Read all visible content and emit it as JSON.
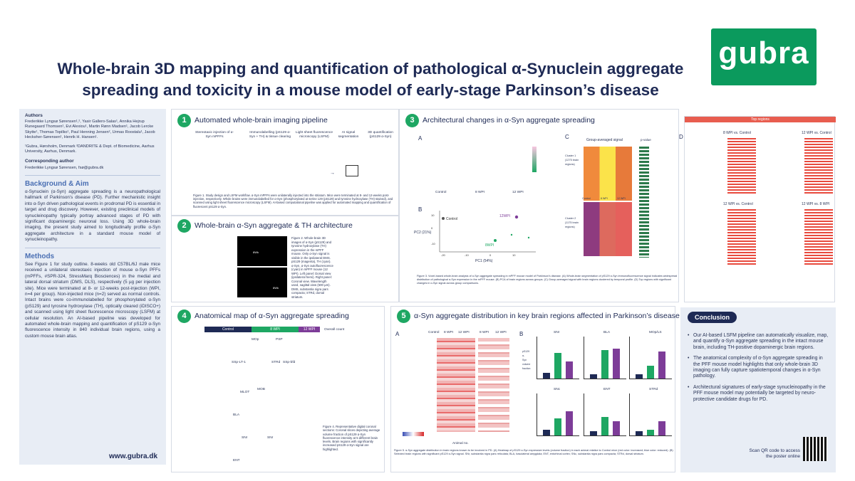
{
  "title": {
    "line1": "Whole-brain 3D mapping and quantification of pathological α-Synuclein aggregate",
    "line2": "spreading and toxicity in a mouse model of early-stage Parkinson’s disease"
  },
  "logo": "gubra",
  "sidebar": {
    "authors_head": "Authors",
    "authors": "Frederikke Lyngsø Sørensen¹,², Yasir Gallero-Salas¹, Annika Hejrup Runegaard Thomsen¹, Evi Alexiou¹, Martin Rønn Madsen¹, Jacob Lercke Skytte¹, Thomas Topilko¹, Paul Henning Jensen², Urmas Roostalu¹, Jacob Hecksher-Sørensen¹, Henrik H. Hansen¹.",
    "affil": "¹Gubra, Hørsholm, Denmark ²DANDRITE & Dept. of Biomedicine, Aarhus University, Aarhus, Denmark.",
    "corr_head": "Corresponding author",
    "corr": "Frederikke Lyngsø Sørensen, fsø@gubra.dk",
    "bg_head": "Background & Aim",
    "bg": "α-Synuclein (α-Syn) aggregate spreading is a neuropathological hallmark of Parkinson’s disease (PD). Further mechanistic insight into α-Syn driven pathological events in prodromal PD is essential in target and drug discovery. However, existing preclinical models of synucleinopathy typically portray advanced stages of PD with significant dopaminergic neuronal loss. Using 3D whole-brain imaging, the present study aimed to longitudinally profile α-Syn aggregate architecture in a standard mouse model of synucleinopathy.",
    "methods_head": "Methods",
    "methods": "See Figure 1 for study outline. 8-weeks old C57BL/6J male mice received a unilateral stereotaxic injection of mouse α-Syn PFFs (mPFFs, #SPR-324, StressMarq Biosciences) in the medial and lateral dorsal striatum (DMS, DLS), respectively (5 µg per injection site). Mice were terminated at 8- or 12-weeks post-injection (WPI, n=4 per group). Non-injected mice (n=2) served as normal controls. Intact brains were co-immunolabelled for phosphorylated α-Syn (pS129) and tyrosine hydroxylase (TH), optically cleared (iDISCO+) and scanned using light sheet fluorescence microscopy (LSFM) at cellular resolution. An AI-based pipeline was developed for automated whole-brain mapping and quantification of pS129 α-Syn fluorescence intensity in 840 individual brain regions, using a custom mouse brain atlas.",
    "www": "www.gubra.dk"
  },
  "panel1": {
    "num": "1",
    "title": "Automated whole-brain imaging pipeline",
    "steps": [
      "Stereotaxic injection of α-Syn mPFFs",
      "Immunolabelling (pS129 α-Syn + TH) & tissue clearing",
      "Light sheet fluorescence microscopy (LSFM)",
      "AI signal segmentation",
      "3D quantification (pS129 α-Syn)"
    ],
    "caption": "Figure 1. Study design and LSFM workflow. α-Syn mPFFs were unilaterally injected into the striatum. Mice were terminated at 8- and 12-weeks post-injection, respectively. Whole brains were immunolabelled for α-Syn (phosphorylated at serine 129 (pS129) and tyrosine hydroxylase (TH) stained), and scanned using light sheet fluorescence microscopy (LSFM). AI-based computational pipeline was applied for automated mapping and quantification of fluorescent pS129 α-Syn."
  },
  "panel2": {
    "num": "2",
    "title": "Whole-brain α-Syn aggregate & TH architecture",
    "img_labels": [
      "8Wk",
      "8Wk"
    ],
    "caption": "Figure 2. Whole-brain 3D images of α-Syn (pS129) and tyrosine hydroxylase (TH) expression in the mPFF mouse. Only α-Syn signal is visible in the ipsilateral DMS. pS129 (magenta), TH (cyan). α-Syn, α-Syn autofluorescence (cyan) in mPFF mouse (12 WPI). Left panel: Dorsal view (ipsilateral hemi). Right panel: Coronal view. Wavelength used, sagittal view (500 µm). DMS, substantia nigra pars compacta; STRd, dorsal striatum."
  },
  "panel3": {
    "num": "3",
    "title": "Architectural changes in α-Syn aggregate spreading",
    "labels": {
      "a": "A",
      "b": "B",
      "c": "C",
      "d": "D"
    },
    "pca_groups": [
      "Control",
      "8 WPI",
      "12 WPI"
    ],
    "pca_xlabel": "PC1 (54%)",
    "pca_ylabel": "PC2 (21%)",
    "pca_point_labels": [
      "Control",
      "12WPI",
      "8WPI"
    ],
    "pca_ticks_x": [
      "-20",
      "-10",
      "0",
      "10"
    ],
    "pca_ticks_y": [
      "10",
      "0",
      "-10"
    ],
    "heat_title": "Group-averaged signal",
    "heat_cols": [
      "Control",
      "8 WPI",
      "12 WPI"
    ],
    "cluster1": "Cluster 1 (1275 brain regions)",
    "cluster2": "Cluster 2 (1175 brain regions)",
    "pval_title": "p-value",
    "top_regions": "Top regions",
    "d_heads": [
      "8 WPI vs. Control",
      "12 WPI vs. Control",
      "12 WPI vs. Control",
      "12 WPI vs. 8 WPI"
    ],
    "caption": "Figure 3. Voxel-based whole-brain analysis of α-Syn aggregate spreading in mPFF mouse model of Parkinson’s disease. (A) Whole-brain segmentation of pS129 α-Syn immunofluorescence signal indicates widespread distribution of pathological α-Syn expression in the mPFF mouse. (B) PCA of brain regions across groups. (C) Group-averaged signal with brain regions clustered by temporal profile. (D) Top regions with significant changes in α-Syn signal across group comparisons."
  },
  "panel4": {
    "num": "4",
    "title": "Anatomical map of α-Syn aggregate spreading",
    "cols": [
      "Control",
      "8 WPI",
      "12 WPI"
    ],
    "legend_title": "Overall count",
    "region_labels": [
      "MOp",
      "PSP",
      "SSp-LT-1",
      "STRd",
      "SSp-bfd",
      "MLOT",
      "MOB",
      "BLA",
      "SNr",
      "SNr",
      "ENT"
    ],
    "caption": "Figure 4. Representative digital coronal sections: Coronal slices depicting average volume fraction of pS129 α-Syn fluorescence intensity at 5 different brain levels. Brain regions with significantly increased pS129 α-Syn signal are highlighted."
  },
  "panel5": {
    "num": "5",
    "title": "α-Syn aggregate distribution in key brain regions affected in Parkinson’s disease",
    "label_a": "A",
    "label_b": "B",
    "heat_cols": [
      "Control",
      "8 WPI",
      "12 WPI",
      "8 WPI",
      "12 WPI"
    ],
    "heat_xlabel": "Animal no.",
    "bar_titles": [
      "SNr",
      "BLA",
      "MOp/LS",
      "SNc",
      "ENT",
      "STRd"
    ],
    "bar_ylabel": "pS129 α-Syn volume fraction",
    "bar_groups": [
      "Ctrl",
      "8 WPI",
      "12 WPI"
    ],
    "sig": [
      "*",
      "***",
      "****",
      "*",
      "*",
      "**"
    ],
    "caption": "Figure 5. α-Syn aggregate distribution in brain regions known to be involved in PD. (A) Heatmap of pS129 α-Syn expressive levels (volume fraction) in each animal relative to Control mice (red color: increased; blue color: reduced). (B) Selected brain regions with significant pS129 α-Syn signal. SNr, substantia nigra pars reticulata; BLA, basolateral amygdala; ENT, entorhinal cortex; SNc, substantia nigra pars compacta; STRd, dorsal striatum."
  },
  "conclusion": {
    "head": "Conclusion",
    "items": [
      "Our AI-based LSFM pipeline can automatically visualize, map, and quantify α-Syn aggregate spreading in the intact mouse brain, including TH-positive dopaminergic brain regions.",
      "The anatomical complexity of α-Syn aggregate spreading in the PFF mouse model highlights that only whole-brain 3D imaging can fully capture spatiotemporal changes in α-Syn pathology.",
      "Architectural signatures of early-stage synucleinopathy in the PFF mouse model may potentially be targeted by neuro-protective candidate drugs for PD."
    ],
    "scan": "Scan QR code to access the poster online"
  },
  "colors": {
    "navy": "#1e2a55",
    "green": "#1ea763",
    "accent_blue": "#4a6fb3",
    "purple": "#7d3c98",
    "light_bg": "#e8edf5"
  }
}
